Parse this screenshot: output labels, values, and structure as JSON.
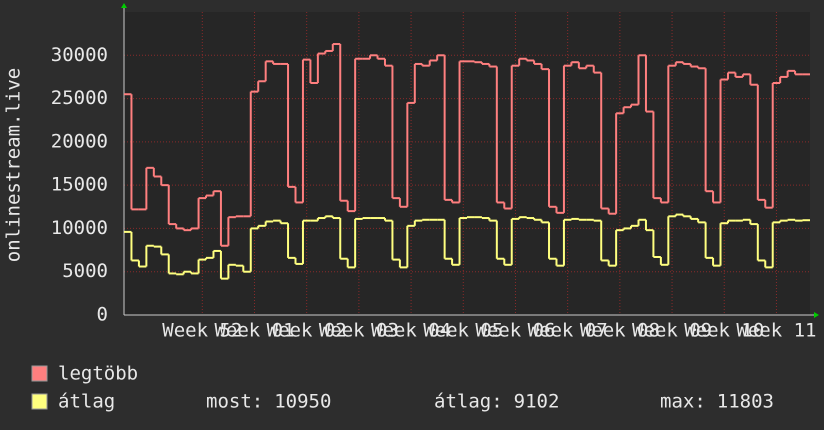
{
  "chart_data": {
    "type": "step",
    "y_label": "onlinestream.live",
    "x": [
      0,
      1,
      2,
      3,
      4,
      5,
      6,
      7,
      8,
      9,
      10,
      11,
      12,
      13,
      14,
      15,
      16,
      17,
      18,
      19,
      20,
      21,
      22,
      23,
      24,
      25,
      26,
      27,
      28,
      29,
      30,
      31,
      32,
      33,
      34,
      35,
      36,
      37,
      38,
      39,
      40,
      41,
      42,
      43,
      44,
      45,
      46,
      47,
      48,
      49,
      50,
      51,
      52,
      53,
      54,
      55,
      56,
      57,
      58,
      59,
      60,
      61,
      62,
      63,
      64,
      65,
      66,
      67,
      68,
      69,
      70,
      71,
      72,
      73,
      74,
      75,
      76,
      77,
      78,
      79,
      80,
      81,
      82,
      83,
      84,
      85,
      86,
      87,
      88,
      89,
      90,
      91
    ],
    "xlim": [
      0,
      92
    ],
    "xticks": [
      {
        "value": 10.5,
        "label": "Week 52"
      },
      {
        "value": 17.5,
        "label": "Week 01"
      },
      {
        "value": 24.5,
        "label": "Week 02"
      },
      {
        "value": 31.5,
        "label": "Week 03"
      },
      {
        "value": 38.5,
        "label": "Week 04"
      },
      {
        "value": 45.5,
        "label": "Week 05"
      },
      {
        "value": 52.5,
        "label": "Week 06"
      },
      {
        "value": 59.5,
        "label": "Week 07"
      },
      {
        "value": 66.5,
        "label": "Week 08"
      },
      {
        "value": 73.5,
        "label": "Week 09"
      },
      {
        "value": 80.5,
        "label": "Week 10"
      },
      {
        "value": 87.5,
        "label": "Week 11"
      }
    ],
    "ylim": [
      0,
      35000
    ],
    "yticks": [
      0,
      5000,
      10000,
      15000,
      20000,
      25000,
      30000
    ],
    "grid": true,
    "series": [
      {
        "name": "legtöbb",
        "color": "#ff7f7f",
        "values": [
          25500,
          12200,
          12200,
          17000,
          16000,
          15000,
          10500,
          10000,
          9800,
          10000,
          13500,
          13800,
          14300,
          8000,
          11300,
          11400,
          11400,
          25800,
          27000,
          29300,
          29000,
          29000,
          14800,
          13000,
          29500,
          26800,
          30200,
          30500,
          31300,
          13200,
          12000,
          29600,
          29600,
          30000,
          29600,
          28800,
          13500,
          12500,
          24500,
          29000,
          28800,
          29400,
          30000,
          13300,
          13000,
          29300,
          29300,
          29200,
          29000,
          28700,
          13000,
          12300,
          28800,
          29600,
          29400,
          29000,
          28400,
          12500,
          11800,
          28800,
          29200,
          28500,
          28800,
          28000,
          12300,
          11700,
          23300,
          24000,
          24300,
          30000,
          23500,
          13500,
          13000,
          28800,
          29200,
          29000,
          28700,
          28500,
          14300,
          13000,
          27200,
          28000,
          27500,
          27800,
          26600,
          13300,
          12400,
          26800,
          27500,
          28200,
          27800,
          27800
        ]
      },
      {
        "name": "átlag",
        "color": "#ffff7f",
        "values": [
          9600,
          6300,
          5600,
          8000,
          7900,
          7000,
          4800,
          4700,
          5000,
          4800,
          6400,
          6600,
          7400,
          4200,
          5800,
          5700,
          5000,
          10000,
          10300,
          10800,
          10900,
          10600,
          6600,
          5900,
          10900,
          10900,
          11200,
          11400,
          11200,
          6500,
          5500,
          11100,
          11200,
          11200,
          11200,
          10900,
          6400,
          5500,
          10300,
          10900,
          11000,
          11000,
          11000,
          6500,
          5800,
          11200,
          11300,
          11300,
          11200,
          10900,
          6500,
          5800,
          11100,
          11300,
          11200,
          11000,
          10700,
          6500,
          5700,
          11000,
          11100,
          11000,
          11000,
          10900,
          6300,
          5700,
          9800,
          10000,
          10300,
          11000,
          9800,
          6700,
          5800,
          11400,
          11600,
          11400,
          11100,
          10700,
          6600,
          5700,
          10600,
          10900,
          10900,
          11000,
          10500,
          6300,
          5500,
          10700,
          10900,
          11000,
          10900,
          10950
        ]
      }
    ],
    "stats": [
      {
        "label": "most:",
        "value": 10950
      },
      {
        "label": "átlag:",
        "value": 9102
      },
      {
        "label": "max:",
        "value": 11803
      }
    ]
  }
}
